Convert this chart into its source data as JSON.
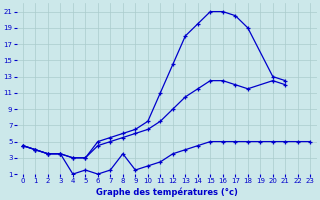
{
  "title": "Graphe des températures (°c)",
  "bg_color": "#cce8ea",
  "grid_color": "#aacccc",
  "line_color": "#0000cc",
  "ylim": [
    1,
    22
  ],
  "xlim": [
    -0.5,
    23.5
  ],
  "yticks": [
    1,
    3,
    5,
    7,
    9,
    11,
    13,
    15,
    17,
    19,
    21
  ],
  "xticks": [
    0,
    1,
    2,
    3,
    4,
    5,
    6,
    7,
    8,
    9,
    10,
    11,
    12,
    13,
    14,
    15,
    16,
    17,
    18,
    19,
    20,
    21,
    22,
    23
  ],
  "hours_max": [
    0,
    1,
    2,
    3,
    4,
    5,
    6,
    7,
    8,
    9,
    10,
    11,
    12,
    13,
    14,
    15,
    16,
    17,
    18,
    19,
    20,
    21,
    22,
    23
  ],
  "vals_max": [
    4.5,
    4.0,
    3.5,
    3.5,
    3.0,
    3.0,
    5.0,
    5.5,
    6.0,
    6.5,
    7.5,
    11.0,
    14.5,
    18.0,
    19.5,
    21.0,
    21.0,
    20.5,
    19.0,
    null,
    13.0,
    12.5,
    null,
    null
  ],
  "hours_mean": [
    0,
    1,
    2,
    3,
    4,
    5,
    6,
    7,
    8,
    9,
    10,
    11,
    12,
    13,
    14,
    15,
    16,
    17,
    18,
    19,
    20,
    21,
    22,
    23
  ],
  "vals_mean": [
    4.5,
    4.0,
    3.5,
    3.5,
    3.0,
    3.0,
    4.5,
    5.0,
    5.5,
    6.0,
    6.5,
    7.5,
    9.0,
    10.5,
    11.5,
    12.5,
    12.5,
    12.0,
    11.5,
    null,
    12.5,
    12.0,
    null,
    null
  ],
  "hours_min": [
    0,
    1,
    2,
    3,
    4,
    5,
    6,
    7,
    8,
    9,
    10,
    11,
    12,
    13,
    14,
    15,
    16,
    17,
    18,
    19,
    20,
    21,
    22,
    23
  ],
  "vals_min": [
    4.5,
    4.0,
    3.5,
    3.5,
    1.0,
    1.5,
    1.0,
    1.5,
    3.5,
    1.5,
    2.0,
    2.5,
    3.5,
    4.0,
    4.5,
    5.0,
    5.0,
    5.0,
    5.0,
    5.0,
    5.0,
    5.0,
    5.0,
    5.0
  ]
}
